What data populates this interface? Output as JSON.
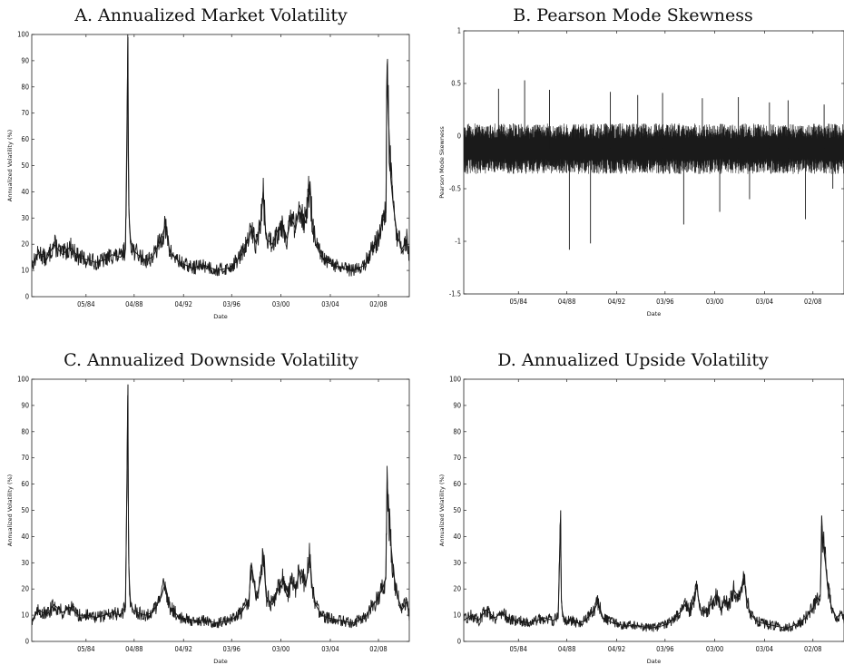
{
  "chart_data": [
    {
      "id": "A",
      "type": "line",
      "title": "A. Annualized Market Volatility",
      "xlabel": "Date",
      "ylabel": "Annualized Volatility (%)",
      "x_range": [
        1980.0,
        2010.6
      ],
      "ylim": [
        0,
        100
      ],
      "y_ticks": [
        0,
        10,
        20,
        30,
        40,
        50,
        60,
        70,
        80,
        90,
        100
      ],
      "y_tick_labels": [
        "0",
        "10",
        "20",
        "30",
        "40",
        "50",
        "60",
        "70",
        "80",
        "90",
        "100"
      ],
      "x_ticks": [
        1984.4,
        1988.3,
        1992.3,
        1996.2,
        2000.2,
        2004.2,
        2008.1
      ],
      "x_tick_labels": [
        "05/84",
        "04/88",
        "04/92",
        "03/96",
        "03/00",
        "03/04",
        "02/08"
      ],
      "grid": false,
      "series": [
        {
          "x": [
            1980.0,
            1980.6,
            1981.2,
            1981.8,
            1982.5,
            1983.1,
            1983.8,
            1984.5,
            1985.2,
            1985.9,
            1986.5,
            1987.2,
            1987.6,
            1987.8,
            1987.82,
            1987.86,
            1987.92,
            1988.0,
            1988.2,
            1988.6,
            1989.2,
            1989.8,
            1990.5,
            1990.8,
            1991.2,
            1992.0,
            1993.0,
            1994.0,
            1995.0,
            1996.0,
            1996.5,
            1997.0,
            1997.6,
            1997.8,
            1998.2,
            1998.6,
            1998.75,
            1999.0,
            1999.5,
            2000.0,
            2000.3,
            2000.7,
            2001.0,
            2001.4,
            2001.7,
            2002.2,
            2002.55,
            2002.7,
            2003.0,
            2003.5,
            2004.0,
            2005.0,
            2006.0,
            2006.5,
            2007.0,
            2007.5,
            2008.0,
            2008.4,
            2008.7,
            2008.8,
            2008.9,
            2009.1,
            2009.3,
            2009.6,
            2010.0,
            2010.4,
            2010.6
          ],
          "y": [
            12,
            17,
            14,
            20,
            16,
            19,
            15,
            14,
            13,
            14,
            16,
            15,
            18,
            99,
            60,
            35,
            28,
            22,
            18,
            16,
            14,
            15,
            22,
            27,
            17,
            13,
            11,
            12,
            10,
            11,
            13,
            16,
            22,
            26,
            20,
            30,
            40,
            22,
            20,
            26,
            28,
            22,
            30,
            26,
            35,
            28,
            44,
            30,
            20,
            15,
            13,
            11,
            10,
            11,
            12,
            18,
            21,
            28,
            32,
            85,
            70,
            45,
            35,
            24,
            18,
            22,
            15
          ],
          "color": "#1a1a1a"
        }
      ]
    },
    {
      "id": "B",
      "type": "line",
      "title": "B. Pearson Mode Skewness",
      "xlabel": "Date",
      "ylabel": "Pearson Mode Skewness",
      "x_range": [
        1980.0,
        2010.6
      ],
      "ylim": [
        -1.5,
        1
      ],
      "y_ticks": [
        -1.5,
        -1,
        -0.5,
        0,
        0.5,
        1
      ],
      "y_tick_labels": [
        "-1.5",
        "-1",
        "-0.5",
        "0",
        "0.5",
        "1"
      ],
      "x_ticks": [
        1984.4,
        1988.3,
        1992.3,
        1996.2,
        2000.2,
        2004.2,
        2008.1
      ],
      "x_tick_labels": [
        "05/84",
        "04/88",
        "04/92",
        "03/96",
        "03/00",
        "03/04",
        "02/08"
      ],
      "grid": false,
      "band": {
        "x": [
          1980.0,
          2010.6
        ],
        "center": -0.12,
        "half_width": 0.16
      },
      "series": [
        {
          "x": [
            1982.8,
            1984.9,
            1986.9,
            1988.5,
            1990.2,
            1991.8,
            1994.0,
            1996.0,
            1997.7,
            1999.2,
            2000.6,
            2002.1,
            2003.0,
            2004.6,
            2006.1,
            2007.5,
            2009.0,
            2009.7
          ],
          "y": [
            0.45,
            0.53,
            0.44,
            -1.08,
            -1.02,
            0.42,
            0.39,
            0.41,
            -0.84,
            0.36,
            -0.72,
            0.37,
            -0.6,
            0.32,
            0.34,
            -0.79,
            0.3,
            -0.5
          ],
          "color": "#1a1a1a"
        }
      ]
    },
    {
      "id": "C",
      "type": "line",
      "title": "C. Annualized Downside Volatility",
      "xlabel": "Date",
      "ylabel": "Annualized Volatility (%)",
      "x_range": [
        1980.0,
        2010.6
      ],
      "ylim": [
        0,
        100
      ],
      "y_ticks": [
        0,
        10,
        20,
        30,
        40,
        50,
        60,
        70,
        80,
        90,
        100
      ],
      "y_tick_labels": [
        "0",
        "10",
        "20",
        "30",
        "40",
        "50",
        "60",
        "70",
        "80",
        "90",
        "100"
      ],
      "x_ticks": [
        1984.4,
        1988.3,
        1992.3,
        1996.2,
        2000.2,
        2004.2,
        2008.1
      ],
      "x_tick_labels": [
        "05/84",
        "04/88",
        "04/92",
        "03/96",
        "03/00",
        "03/04",
        "02/08"
      ],
      "grid": false,
      "series": [
        {
          "x": [
            1980.0,
            1980.6,
            1981.2,
            1981.8,
            1982.5,
            1983.1,
            1983.8,
            1984.5,
            1985.2,
            1985.9,
            1986.5,
            1987.2,
            1987.6,
            1987.8,
            1987.82,
            1987.86,
            1987.92,
            1988.0,
            1988.2,
            1988.6,
            1989.2,
            1989.8,
            1990.5,
            1990.8,
            1991.2,
            1992.0,
            1993.0,
            1994.0,
            1995.0,
            1996.0,
            1996.5,
            1997.0,
            1997.6,
            1997.8,
            1998.2,
            1998.6,
            1998.75,
            1999.0,
            1999.5,
            2000.0,
            2000.3,
            2000.7,
            2001.0,
            2001.4,
            2001.7,
            2002.2,
            2002.55,
            2002.7,
            2003.0,
            2003.5,
            2004.0,
            2005.0,
            2006.0,
            2006.5,
            2007.0,
            2007.5,
            2008.0,
            2008.4,
            2008.7,
            2008.8,
            2008.9,
            2009.1,
            2009.3,
            2009.6,
            2010.0,
            2010.4,
            2010.6
          ],
          "y": [
            8,
            12,
            10,
            14,
            11,
            13,
            10,
            10,
            9,
            10,
            11,
            10,
            13,
            98,
            55,
            30,
            22,
            15,
            12,
            11,
            10,
            11,
            17,
            22,
            13,
            9,
            8,
            8,
            7,
            8,
            9,
            11,
            16,
            30,
            16,
            25,
            34,
            17,
            14,
            20,
            24,
            17,
            23,
            20,
            27,
            21,
            33,
            22,
            14,
            10,
            9,
            8,
            7,
            8,
            9,
            13,
            16,
            20,
            24,
            62,
            52,
            38,
            27,
            18,
            12,
            15,
            10
          ],
          "color": "#1a1a1a"
        }
      ]
    },
    {
      "id": "D",
      "type": "line",
      "title": "D. Annualized Upside Volatility",
      "xlabel": "Date",
      "ylabel": "Annualized Volatility (%)",
      "x_range": [
        1980.0,
        2010.6
      ],
      "ylim": [
        0,
        100
      ],
      "y_ticks": [
        0,
        10,
        20,
        30,
        40,
        50,
        60,
        70,
        80,
        90,
        100
      ],
      "y_tick_labels": [
        "0",
        "10",
        "20",
        "30",
        "40",
        "50",
        "60",
        "70",
        "80",
        "90",
        "100"
      ],
      "x_ticks": [
        1984.4,
        1988.3,
        1992.3,
        1996.2,
        2000.2,
        2004.2,
        2008.1
      ],
      "x_tick_labels": [
        "05/84",
        "04/88",
        "04/92",
        "03/96",
        "03/00",
        "03/04",
        "02/08"
      ],
      "grid": false,
      "series": [
        {
          "x": [
            1980.0,
            1980.6,
            1981.2,
            1981.8,
            1982.5,
            1983.1,
            1983.8,
            1984.5,
            1985.2,
            1985.9,
            1986.5,
            1987.2,
            1987.6,
            1987.8,
            1987.82,
            1987.86,
            1987.92,
            1988.0,
            1988.2,
            1988.6,
            1989.2,
            1989.8,
            1990.5,
            1990.8,
            1991.2,
            1992.0,
            1993.0,
            1994.0,
            1995.0,
            1996.0,
            1996.5,
            1997.0,
            1997.6,
            1997.8,
            1998.2,
            1998.6,
            1998.75,
            1999.0,
            1999.5,
            2000.0,
            2000.3,
            2000.7,
            2001.0,
            2001.4,
            2001.7,
            2002.2,
            2002.55,
            2002.7,
            2003.0,
            2003.5,
            2004.0,
            2005.0,
            2006.0,
            2006.5,
            2007.0,
            2007.5,
            2008.0,
            2008.4,
            2008.7,
            2008.8,
            2008.9,
            2009.1,
            2009.3,
            2009.6,
            2010.0,
            2010.4,
            2010.6
          ],
          "y": [
            8,
            10,
            8,
            12,
            9,
            11,
            8,
            8,
            7,
            8,
            9,
            8,
            9,
            50,
            30,
            16,
            12,
            10,
            8,
            8,
            7,
            8,
            12,
            15,
            9,
            7,
            6,
            6,
            5,
            6,
            7,
            9,
            12,
            14,
            12,
            16,
            22,
            12,
            11,
            15,
            18,
            12,
            16,
            14,
            20,
            16,
            26,
            18,
            11,
            8,
            7,
            6,
            5,
            6,
            7,
            9,
            12,
            15,
            18,
            48,
            38,
            30,
            20,
            13,
            9,
            11,
            8
          ],
          "color": "#1a1a1a"
        }
      ]
    }
  ]
}
